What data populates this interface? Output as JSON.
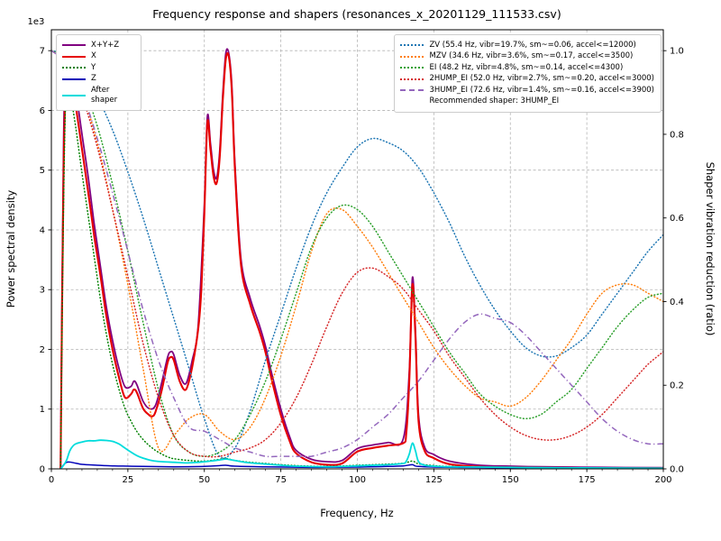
{
  "chart_data": {
    "type": "line",
    "title": "Frequency response and shapers (resonances_x_20201129_111533.csv)",
    "xlabel": "Frequency, Hz",
    "ylabel_left": "Power spectral density",
    "ylabel_right": "Shaper vibration reduction (ratio)",
    "y_offset_label": "1e3",
    "xlim": [
      0,
      200
    ],
    "ylim_left": [
      0,
      7350
    ],
    "ylim_right": [
      0,
      1.05
    ],
    "y_left_scale": 1000,
    "x_ticks": [
      0,
      25,
      50,
      75,
      100,
      125,
      150,
      175,
      200
    ],
    "x_minor_step": 5,
    "y_ticks_left": [
      0,
      1,
      2,
      3,
      4,
      5,
      6,
      7
    ],
    "y_ticks_right": [
      0.0,
      0.2,
      0.4,
      0.6,
      0.8,
      1.0
    ],
    "grid": true,
    "colors": {
      "grid": "#b3b3b3",
      "axis": "#000000",
      "background": "#ffffff"
    },
    "legend_note": "Recommended shaper: 3HUMP_EI",
    "recommended_shaper": "3HUMP_EI",
    "psd_series": [
      {
        "name": "X+Y+Z",
        "color": "#800080",
        "style": "solid",
        "width": 1.8,
        "x": [
          3,
          4,
          5,
          6,
          8,
          10,
          12,
          14,
          16,
          18,
          20,
          22,
          24,
          26,
          27,
          28,
          30,
          32,
          34,
          36,
          38,
          39,
          40,
          42,
          44,
          46,
          48,
          50,
          51,
          52,
          53,
          54,
          55,
          56,
          57,
          58,
          59,
          60,
          62,
          65,
          68,
          70,
          72,
          75,
          78,
          80,
          85,
          90,
          95,
          100,
          105,
          110,
          115,
          117,
          118,
          119,
          120,
          122,
          125,
          130,
          140,
          150,
          160,
          180,
          200
        ],
        "y": [
          0,
          5500,
          6950,
          6750,
          6300,
          5600,
          4900,
          4100,
          3400,
          2700,
          2150,
          1700,
          1380,
          1380,
          1470,
          1400,
          1130,
          1010,
          1060,
          1430,
          1870,
          1960,
          1910,
          1560,
          1430,
          1810,
          2420,
          4450,
          5900,
          5450,
          5000,
          4870,
          5300,
          6250,
          6950,
          6950,
          6400,
          5100,
          3500,
          2850,
          2400,
          2050,
          1600,
          1000,
          520,
          310,
          160,
          120,
          140,
          340,
          400,
          440,
          500,
          1650,
          3200,
          2300,
          900,
          360,
          240,
          130,
          60,
          45,
          35,
          25,
          20
        ]
      },
      {
        "name": "X",
        "color": "#e60000",
        "style": "solid",
        "width": 2.1,
        "x": [
          3,
          4,
          5,
          6,
          8,
          10,
          12,
          14,
          16,
          18,
          20,
          22,
          24,
          26,
          27,
          28,
          30,
          32,
          33,
          34,
          36,
          38,
          39,
          40,
          42,
          44,
          46,
          48,
          49,
          50,
          51,
          52,
          53,
          54,
          55,
          56,
          57,
          58,
          59,
          60,
          62,
          65,
          68,
          70,
          72,
          75,
          78,
          80,
          85,
          90,
          95,
          100,
          105,
          110,
          115,
          116,
          117,
          118,
          119,
          120,
          122,
          125,
          130,
          140,
          150,
          160,
          180,
          200
        ],
        "y": [
          0,
          5000,
          6700,
          6500,
          6050,
          5350,
          4650,
          3900,
          3250,
          2550,
          2000,
          1550,
          1200,
          1250,
          1330,
          1270,
          1010,
          900,
          880,
          950,
          1300,
          1780,
          1870,
          1820,
          1460,
          1330,
          1700,
          2350,
          3000,
          4300,
          5800,
          5350,
          4900,
          4780,
          5200,
          6150,
          6850,
          6900,
          6300,
          5000,
          3400,
          2750,
          2300,
          1950,
          1500,
          900,
          450,
          260,
          110,
          70,
          90,
          290,
          350,
          390,
          430,
          600,
          1500,
          3080,
          2200,
          800,
          300,
          180,
          80,
          35,
          25,
          20,
          12,
          10
        ]
      },
      {
        "name": "Y",
        "color": "#008000",
        "style": "dotted",
        "width": 1.5,
        "x": [
          3,
          4,
          5,
          6,
          8,
          10,
          12,
          14,
          16,
          18,
          20,
          22,
          24,
          26,
          28,
          30,
          32,
          34,
          36,
          38,
          40,
          45,
          50,
          55,
          57,
          60,
          65,
          70,
          75,
          80,
          90,
          100,
          110,
          115,
          118,
          120,
          125,
          130,
          140,
          150,
          160,
          180,
          200
        ],
        "y": [
          0,
          4500,
          6600,
          6350,
          5700,
          4950,
          4250,
          3550,
          2850,
          2250,
          1750,
          1350,
          1020,
          800,
          620,
          490,
          390,
          310,
          250,
          200,
          170,
          140,
          130,
          160,
          175,
          140,
          110,
          90,
          70,
          55,
          40,
          60,
          80,
          95,
          130,
          85,
          55,
          40,
          30,
          25,
          20,
          15,
          10
        ]
      },
      {
        "name": "Z",
        "color": "#0000b8",
        "style": "solid",
        "width": 1.5,
        "x": [
          3,
          5,
          8,
          10,
          15,
          20,
          25,
          30,
          40,
          50,
          55,
          57,
          60,
          70,
          80,
          90,
          100,
          110,
          115,
          118,
          120,
          130,
          150,
          170,
          200
        ],
        "y": [
          0,
          110,
          95,
          75,
          60,
          50,
          45,
          40,
          35,
          40,
          55,
          60,
          45,
          35,
          28,
          25,
          30,
          40,
          50,
          70,
          40,
          25,
          20,
          15,
          10
        ]
      },
      {
        "name": "After shaper",
        "color": "#00dcdc",
        "style": "solid",
        "width": 1.8,
        "x": [
          3,
          4,
          5,
          6,
          7,
          8,
          10,
          12,
          14,
          16,
          18,
          20,
          22,
          24,
          26,
          28,
          30,
          32,
          34,
          36,
          40,
          44,
          48,
          52,
          55,
          57,
          59,
          62,
          65,
          70,
          75,
          80,
          90,
          100,
          105,
          110,
          115,
          116,
          117,
          118,
          119,
          120,
          122,
          125,
          130,
          140,
          150,
          160,
          180,
          200
        ],
        "y": [
          0,
          60,
          150,
          300,
          380,
          420,
          450,
          470,
          470,
          480,
          475,
          460,
          420,
          350,
          280,
          220,
          180,
          150,
          130,
          120,
          110,
          100,
          110,
          130,
          150,
          165,
          150,
          120,
          100,
          80,
          60,
          45,
          35,
          50,
          60,
          70,
          90,
          130,
          250,
          430,
          300,
          120,
          60,
          45,
          35,
          30,
          25,
          20,
          15,
          10
        ]
      }
    ],
    "shaper_x": [
      0,
      5,
      10,
      15,
      20,
      25,
      30,
      35,
      40,
      45,
      50,
      55,
      60,
      65,
      70,
      75,
      80,
      85,
      90,
      95,
      100,
      105,
      110,
      115,
      120,
      125,
      130,
      135,
      140,
      145,
      150,
      155,
      160,
      165,
      170,
      175,
      180,
      185,
      190,
      195,
      200
    ],
    "shaper_series": [
      {
        "name": "ZV",
        "label": "ZV (55.4 Hz, vibr=19.7%, sm~=0.06, accel<=12000)",
        "color": "#1f77b4",
        "style": "dotted",
        "y": [
          1.0,
          0.99,
          0.95,
          0.89,
          0.81,
          0.71,
          0.6,
          0.48,
          0.36,
          0.24,
          0.12,
          0.03,
          0.05,
          0.14,
          0.26,
          0.37,
          0.48,
          0.58,
          0.66,
          0.72,
          0.77,
          0.79,
          0.78,
          0.76,
          0.72,
          0.66,
          0.59,
          0.51,
          0.44,
          0.38,
          0.33,
          0.29,
          0.27,
          0.27,
          0.29,
          0.32,
          0.37,
          0.42,
          0.47,
          0.52,
          0.56
        ]
      },
      {
        "name": "MZV",
        "label": "MZV (34.6 Hz, vibr=3.6%, sm~=0.17, accel<=3500)",
        "color": "#ff7f0e",
        "style": "dotted",
        "y": [
          1.0,
          0.97,
          0.9,
          0.78,
          0.62,
          0.44,
          0.24,
          0.05,
          0.08,
          0.12,
          0.13,
          0.09,
          0.07,
          0.1,
          0.17,
          0.27,
          0.39,
          0.52,
          0.61,
          0.62,
          0.58,
          0.53,
          0.47,
          0.41,
          0.35,
          0.29,
          0.24,
          0.2,
          0.17,
          0.16,
          0.15,
          0.17,
          0.21,
          0.26,
          0.31,
          0.37,
          0.42,
          0.44,
          0.44,
          0.42,
          0.4
        ]
      },
      {
        "name": "EI",
        "label": "EI (48.2 Hz, vibr=4.8%, sm~=0.14, accel<=4300)",
        "color": "#2ca02c",
        "style": "dotted",
        "y": [
          1.0,
          0.98,
          0.92,
          0.82,
          0.68,
          0.52,
          0.35,
          0.19,
          0.08,
          0.04,
          0.03,
          0.04,
          0.07,
          0.13,
          0.21,
          0.31,
          0.42,
          0.53,
          0.6,
          0.63,
          0.62,
          0.58,
          0.52,
          0.46,
          0.4,
          0.34,
          0.28,
          0.23,
          0.18,
          0.15,
          0.13,
          0.12,
          0.13,
          0.16,
          0.19,
          0.24,
          0.29,
          0.34,
          0.38,
          0.41,
          0.42
        ]
      },
      {
        "name": "2HUMP_EI",
        "label": "2HUMP_EI (52.0 Hz, vibr=2.7%, sm~=0.20, accel<=3000)",
        "color": "#d62728",
        "style": "dotted",
        "y": [
          1.0,
          0.97,
          0.89,
          0.77,
          0.62,
          0.46,
          0.3,
          0.17,
          0.08,
          0.04,
          0.03,
          0.03,
          0.04,
          0.05,
          0.07,
          0.11,
          0.17,
          0.25,
          0.34,
          0.42,
          0.47,
          0.48,
          0.46,
          0.43,
          0.38,
          0.33,
          0.27,
          0.22,
          0.17,
          0.13,
          0.1,
          0.08,
          0.07,
          0.07,
          0.08,
          0.1,
          0.13,
          0.17,
          0.21,
          0.25,
          0.28
        ]
      },
      {
        "name": "3HUMP_EI",
        "label": "3HUMP_EI (72.6 Hz, vibr=1.4%, sm~=0.16, accel<=3900)",
        "color": "#9467bd",
        "style": "dashdot",
        "y": [
          1.0,
          0.97,
          0.9,
          0.79,
          0.66,
          0.52,
          0.38,
          0.26,
          0.17,
          0.1,
          0.09,
          0.07,
          0.05,
          0.04,
          0.03,
          0.03,
          0.03,
          0.03,
          0.04,
          0.05,
          0.07,
          0.1,
          0.13,
          0.17,
          0.21,
          0.26,
          0.31,
          0.35,
          0.37,
          0.36,
          0.35,
          0.32,
          0.28,
          0.24,
          0.2,
          0.16,
          0.12,
          0.09,
          0.07,
          0.06,
          0.06
        ]
      }
    ]
  }
}
